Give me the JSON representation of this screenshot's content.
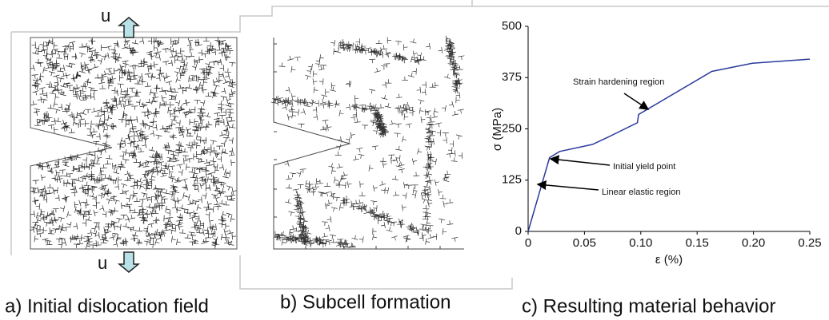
{
  "panels": [
    {
      "caption": "a) Initial dislocation field",
      "load_label_top": "u",
      "load_label_bottom": "u"
    },
    {
      "caption": "b) Subcell formation"
    },
    {
      "caption": "c) Resulting material behavior"
    }
  ],
  "chart_data": {
    "type": "line",
    "x_label": "ε (%)",
    "y_label": "σ (MPa)",
    "x": [
      0,
      0.019,
      0.028,
      0.057,
      0.071,
      0.097,
      0.098,
      0.163,
      0.199,
      0.25
    ],
    "series": [
      {
        "color": "#2a3a9c",
        "values": [
          0,
          180,
          195,
          212,
          230,
          265,
          285,
          390,
          410,
          420
        ]
      }
    ],
    "xlim": [
      0,
      0.25
    ],
    "ylim": [
      0,
      500
    ],
    "xticks": [
      0,
      0.05,
      {
        "value": 0.1,
        "label": "0.10"
      },
      0.15,
      {
        "value": 0.2,
        "label": "0.20"
      },
      0.25
    ],
    "yticks": [
      0,
      125,
      250,
      375,
      500
    ],
    "annotations": [
      "Strain hardening region",
      "Initial yield point",
      "Linear elastic region"
    ]
  }
}
